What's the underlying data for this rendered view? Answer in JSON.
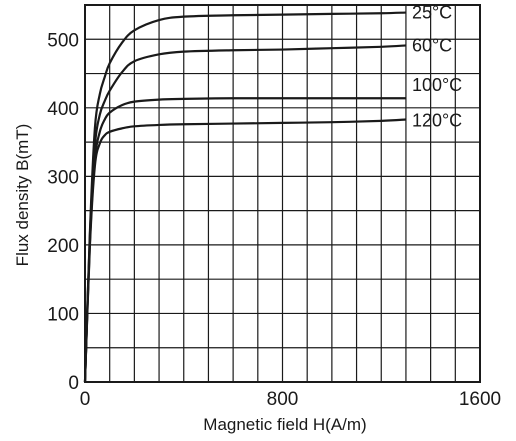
{
  "chart_data": {
    "type": "line",
    "title": "",
    "xlabel": "Magnetic field H(A/m)",
    "ylabel": "Flux density B(mT)",
    "xlim": [
      0,
      1600
    ],
    "ylim": [
      0,
      550
    ],
    "x_ticks": [
      0,
      800,
      1600
    ],
    "y_ticks": [
      0,
      100,
      200,
      300,
      400,
      500
    ],
    "x_tick_labels": [
      "0",
      "800",
      "1600"
    ],
    "y_tick_labels": [
      "0",
      "100",
      "200",
      "300",
      "400",
      "500"
    ],
    "grid": true,
    "grid_x_step": 100,
    "grid_y_step": 50,
    "line_color": "#1a1a1a",
    "series": [
      {
        "name": "25°C",
        "x": [
          0,
          20,
          40,
          60,
          80,
          100,
          150,
          200,
          300,
          400,
          600,
          800,
          1000,
          1200,
          1300
        ],
        "y": [
          0,
          220,
          370,
          420,
          445,
          465,
          495,
          513,
          528,
          533,
          535,
          536,
          537,
          538,
          539
        ]
      },
      {
        "name": "60°C",
        "x": [
          0,
          20,
          40,
          60,
          80,
          100,
          150,
          200,
          300,
          400,
          600,
          800,
          1000,
          1200,
          1300
        ],
        "y": [
          0,
          215,
          345,
          390,
          410,
          425,
          452,
          468,
          478,
          482,
          484,
          485,
          487,
          489,
          491
        ]
      },
      {
        "name": "100°C",
        "x": [
          0,
          20,
          40,
          60,
          80,
          100,
          150,
          200,
          300,
          400,
          600,
          800,
          1000,
          1200,
          1300
        ],
        "y": [
          0,
          205,
          325,
          365,
          383,
          393,
          404,
          409,
          412,
          413,
          414,
          414,
          414,
          414,
          414
        ]
      },
      {
        "name": "120°C",
        "x": [
          0,
          20,
          40,
          60,
          80,
          100,
          150,
          200,
          300,
          400,
          600,
          800,
          1000,
          1200,
          1300
        ],
        "y": [
          0,
          200,
          315,
          348,
          360,
          365,
          370,
          373,
          375,
          376,
          377,
          378,
          379,
          381,
          383
        ]
      }
    ]
  }
}
